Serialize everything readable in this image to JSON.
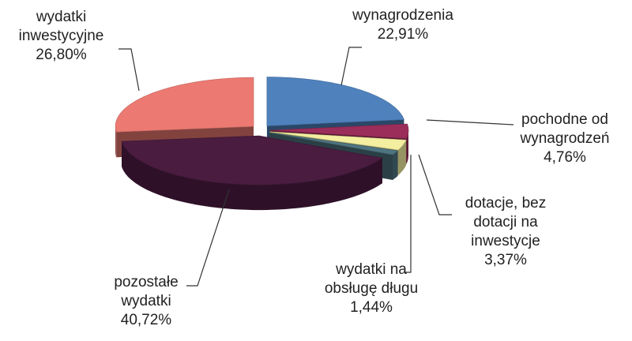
{
  "chart_data": {
    "type": "pie",
    "categories": [
      "wynagrodzenia",
      "pochodne od wynagrodzeń",
      "dotacje, bez dotacji na inwestycje",
      "wydatki na obsługę długu",
      "pozostałe wydatki",
      "wydatki inwestycyjne"
    ],
    "values": [
      22.91,
      4.76,
      3.37,
      1.44,
      40.72,
      26.8
    ],
    "value_labels": [
      "22,91%",
      "4,76%",
      "3,37%",
      "1,44%",
      "40,72%",
      "26,80%"
    ],
    "colors": [
      "#4f81bd",
      "#9b2d5a",
      "#f3eea0",
      "#4e7480",
      "#4a1c40",
      "#ec7a72"
    ]
  }
}
